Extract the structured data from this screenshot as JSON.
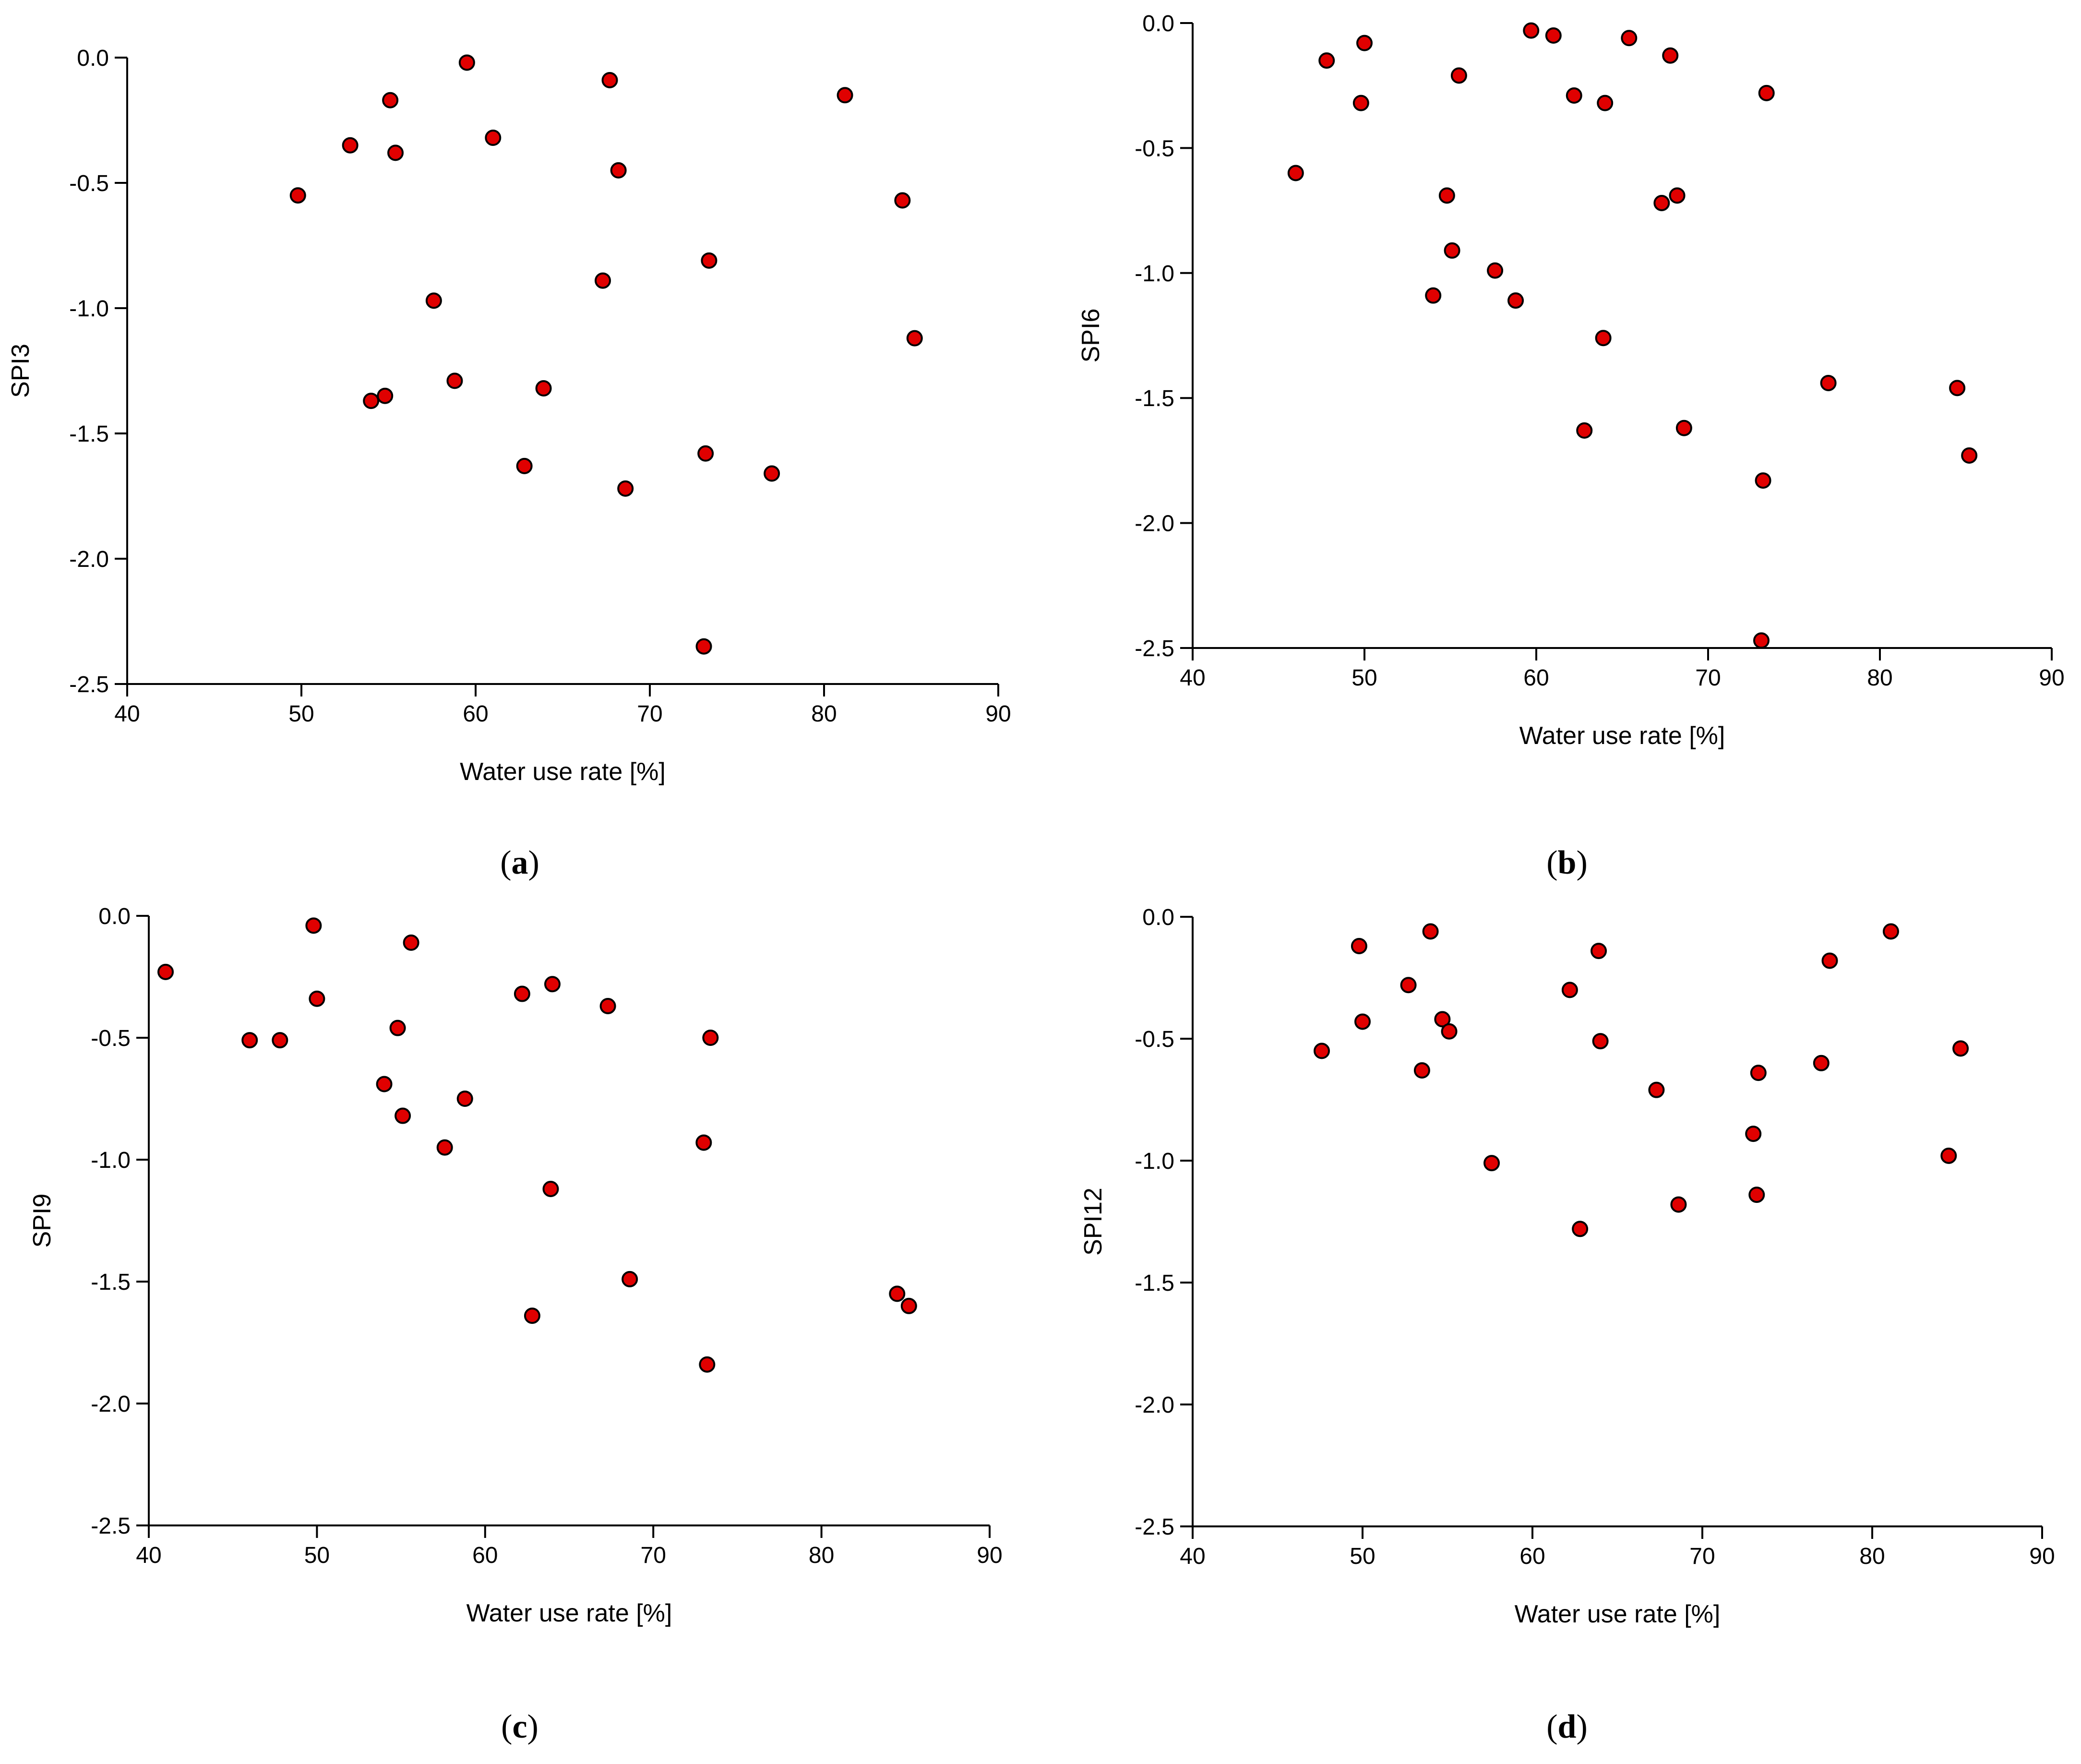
{
  "colors": {
    "marker_fill": "#e00000",
    "marker_edge": "#000000",
    "axis": "#000000"
  },
  "chart_data": [
    {
      "type": "scatter",
      "panel_label": {
        "open": "(",
        "letter": "a",
        "close": ")"
      },
      "xlabel": "Water use rate [%]",
      "ylabel": "SPI3",
      "xlim": [
        40,
        90
      ],
      "ylim": [
        -2.5,
        0.0
      ],
      "xticks": [
        40,
        50,
        60,
        70,
        80,
        90
      ],
      "yticks": [
        0.0,
        -0.5,
        -1.0,
        -1.5,
        -2.0,
        -2.5
      ],
      "xtick_labels": [
        "40",
        "50",
        "60",
        "70",
        "80",
        "90"
      ],
      "ytick_labels": [
        "0.0",
        "-0.5",
        "-1.0",
        "-1.5",
        "-2.0",
        "-2.5"
      ],
      "grid": false,
      "points": [
        {
          "x": 49.8,
          "y": -0.55
        },
        {
          "x": 52.8,
          "y": -0.35
        },
        {
          "x": 54.0,
          "y": -1.37
        },
        {
          "x": 54.8,
          "y": -1.35
        },
        {
          "x": 55.1,
          "y": -0.17
        },
        {
          "x": 55.4,
          "y": -0.38
        },
        {
          "x": 57.6,
          "y": -0.97
        },
        {
          "x": 58.8,
          "y": -1.29
        },
        {
          "x": 59.5,
          "y": -0.02
        },
        {
          "x": 61.0,
          "y": -0.32
        },
        {
          "x": 62.8,
          "y": -1.63
        },
        {
          "x": 63.9,
          "y": -1.32
        },
        {
          "x": 67.3,
          "y": -0.89
        },
        {
          "x": 67.7,
          "y": -0.09
        },
        {
          "x": 68.2,
          "y": -0.45
        },
        {
          "x": 68.6,
          "y": -1.72
        },
        {
          "x": 73.1,
          "y": -2.35
        },
        {
          "x": 73.2,
          "y": -1.58
        },
        {
          "x": 73.4,
          "y": -0.81
        },
        {
          "x": 77.0,
          "y": -1.66
        },
        {
          "x": 81.2,
          "y": -0.15
        },
        {
          "x": 84.5,
          "y": -0.57
        },
        {
          "x": 85.2,
          "y": -1.12
        }
      ]
    },
    {
      "type": "scatter",
      "panel_label": {
        "open": "(",
        "letter": "b",
        "close": ")"
      },
      "xlabel": "Water use rate [%]",
      "ylabel": "SPI6",
      "xlim": [
        40,
        90
      ],
      "ylim": [
        -2.5,
        0.0
      ],
      "xticks": [
        40,
        50,
        60,
        70,
        80,
        90
      ],
      "yticks": [
        0.0,
        -0.5,
        -1.0,
        -1.5,
        -2.0,
        -2.5
      ],
      "xtick_labels": [
        "40",
        "50",
        "60",
        "70",
        "80",
        "90"
      ],
      "ytick_labels": [
        "0.0",
        "-0.5",
        "-1.0",
        "-1.5",
        "-2.0",
        "-2.5"
      ],
      "grid": false,
      "points": [
        {
          "x": 46.0,
          "y": -0.6
        },
        {
          "x": 47.8,
          "y": -0.15
        },
        {
          "x": 49.8,
          "y": -0.32
        },
        {
          "x": 50.0,
          "y": -0.08
        },
        {
          "x": 54.0,
          "y": -1.09
        },
        {
          "x": 54.8,
          "y": -0.69
        },
        {
          "x": 55.1,
          "y": -0.91
        },
        {
          "x": 55.5,
          "y": -0.21
        },
        {
          "x": 57.6,
          "y": -0.99
        },
        {
          "x": 58.8,
          "y": -1.11
        },
        {
          "x": 59.7,
          "y": -0.03
        },
        {
          "x": 61.0,
          "y": -0.05
        },
        {
          "x": 62.2,
          "y": -0.29
        },
        {
          "x": 62.8,
          "y": -1.63
        },
        {
          "x": 63.9,
          "y": -1.26
        },
        {
          "x": 64.0,
          "y": -0.32
        },
        {
          "x": 65.4,
          "y": -0.06
        },
        {
          "x": 67.3,
          "y": -0.72
        },
        {
          "x": 67.8,
          "y": -0.13
        },
        {
          "x": 68.2,
          "y": -0.69
        },
        {
          "x": 68.6,
          "y": -1.62
        },
        {
          "x": 73.1,
          "y": -2.47
        },
        {
          "x": 73.2,
          "y": -1.83
        },
        {
          "x": 73.4,
          "y": -0.28
        },
        {
          "x": 77.0,
          "y": -1.44
        },
        {
          "x": 84.5,
          "y": -1.46
        },
        {
          "x": 85.2,
          "y": -1.73
        }
      ]
    },
    {
      "type": "scatter",
      "panel_label": {
        "open": "(",
        "letter": "c",
        "close": ")"
      },
      "xlabel": "Water use rate [%]",
      "ylabel": "SPI9",
      "xlim": [
        40,
        90
      ],
      "ylim": [
        -2.5,
        0.0
      ],
      "xticks": [
        40,
        50,
        60,
        70,
        80,
        90
      ],
      "yticks": [
        0.0,
        -0.5,
        -1.0,
        -1.5,
        -2.0,
        -2.5
      ],
      "xtick_labels": [
        "40",
        "50",
        "60",
        "70",
        "80",
        "90"
      ],
      "ytick_labels": [
        "0.0",
        "-0.5",
        "-1.0",
        "-1.5",
        "-2.0",
        "-2.5"
      ],
      "grid": false,
      "points": [
        {
          "x": 41.0,
          "y": -0.23
        },
        {
          "x": 46.0,
          "y": -0.51
        },
        {
          "x": 47.8,
          "y": -0.51
        },
        {
          "x": 49.8,
          "y": -0.04
        },
        {
          "x": 50.0,
          "y": -0.34
        },
        {
          "x": 54.0,
          "y": -0.69
        },
        {
          "x": 54.8,
          "y": -0.46
        },
        {
          "x": 55.1,
          "y": -0.82
        },
        {
          "x": 55.6,
          "y": -0.11
        },
        {
          "x": 57.6,
          "y": -0.95
        },
        {
          "x": 58.8,
          "y": -0.75
        },
        {
          "x": 62.2,
          "y": -0.32
        },
        {
          "x": 62.8,
          "y": -1.64
        },
        {
          "x": 63.9,
          "y": -1.12
        },
        {
          "x": 64.0,
          "y": -0.28
        },
        {
          "x": 67.3,
          "y": -0.37
        },
        {
          "x": 68.6,
          "y": -1.49
        },
        {
          "x": 73.0,
          "y": -0.93
        },
        {
          "x": 73.2,
          "y": -1.84
        },
        {
          "x": 73.4,
          "y": -0.5
        },
        {
          "x": 84.5,
          "y": -1.55
        },
        {
          "x": 85.2,
          "y": -1.6
        }
      ]
    },
    {
      "type": "scatter",
      "panel_label": {
        "open": "(",
        "letter": "d",
        "close": ")"
      },
      "xlabel": "Water use rate [%]",
      "ylabel": "SPI12",
      "xlim": [
        40,
        90
      ],
      "ylim": [
        -2.5,
        0.0
      ],
      "xticks": [
        40,
        50,
        60,
        70,
        80,
        90
      ],
      "yticks": [
        0.0,
        -0.5,
        -1.0,
        -1.5,
        -2.0,
        -2.5
      ],
      "xtick_labels": [
        "40",
        "50",
        "60",
        "70",
        "80",
        "90"
      ],
      "ytick_labels": [
        "0.0",
        "-0.5",
        "-1.0",
        "-1.5",
        "-2.0",
        "-2.5"
      ],
      "grid": false,
      "points": [
        {
          "x": 47.6,
          "y": -0.55
        },
        {
          "x": 49.8,
          "y": -0.12
        },
        {
          "x": 50.0,
          "y": -0.43
        },
        {
          "x": 52.7,
          "y": -0.28
        },
        {
          "x": 53.5,
          "y": -0.63
        },
        {
          "x": 54.0,
          "y": -0.06
        },
        {
          "x": 54.7,
          "y": -0.42
        },
        {
          "x": 55.1,
          "y": -0.47
        },
        {
          "x": 57.6,
          "y": -1.01
        },
        {
          "x": 62.2,
          "y": -0.3
        },
        {
          "x": 62.8,
          "y": -1.28
        },
        {
          "x": 63.9,
          "y": -0.14
        },
        {
          "x": 64.0,
          "y": -0.51
        },
        {
          "x": 67.3,
          "y": -0.71
        },
        {
          "x": 68.6,
          "y": -1.18
        },
        {
          "x": 73.0,
          "y": -0.89
        },
        {
          "x": 73.2,
          "y": -1.14
        },
        {
          "x": 73.3,
          "y": -0.64
        },
        {
          "x": 77.0,
          "y": -0.6
        },
        {
          "x": 77.5,
          "y": -0.18
        },
        {
          "x": 81.1,
          "y": -0.06
        },
        {
          "x": 84.5,
          "y": -0.98
        },
        {
          "x": 85.2,
          "y": -0.54
        }
      ]
    }
  ]
}
